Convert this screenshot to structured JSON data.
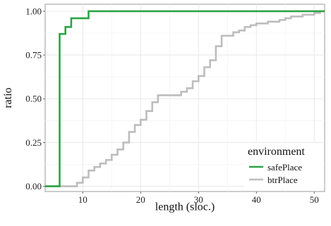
{
  "chart_data": {
    "type": "line",
    "step": true,
    "xlabel": "length (sloc.)",
    "ylabel": "ratio",
    "xlim": [
      3.5,
      51.8
    ],
    "ylim": [
      -0.03,
      1.04
    ],
    "x_ticks": [
      10,
      20,
      30,
      40,
      50
    ],
    "x_tick_labels": [
      "10",
      "20",
      "30",
      "40",
      "50"
    ],
    "y_ticks": [
      0,
      0.25,
      0.5,
      0.75,
      1.0
    ],
    "y_tick_labels": [
      "0.00",
      "0.25",
      "0.50",
      "0.75",
      "1.00"
    ],
    "grid": true,
    "legend": {
      "title": "environment",
      "placement": "bottom-right inside",
      "entries": [
        "safePlace",
        "btrPlace"
      ]
    },
    "series": [
      {
        "name": "safePlace",
        "color": "#2ca446",
        "x": [
          3.5,
          6,
          7,
          8,
          11,
          51.8
        ],
        "y": [
          0,
          0.87,
          0.91,
          0.96,
          1.0,
          1.0
        ]
      },
      {
        "name": "btrPlace",
        "color": "#bdbdbd",
        "x": [
          3.5,
          9,
          10,
          11,
          12,
          13,
          14,
          15,
          16,
          17,
          18,
          19,
          20,
          21,
          22,
          23,
          27,
          28,
          29,
          30,
          31,
          32,
          33,
          34,
          36,
          37,
          38,
          39,
          40,
          42,
          44,
          45,
          46,
          47,
          48,
          50,
          51,
          51.8
        ],
        "y": [
          0,
          0.02,
          0.05,
          0.09,
          0.11,
          0.13,
          0.15,
          0.18,
          0.21,
          0.25,
          0.31,
          0.35,
          0.38,
          0.43,
          0.48,
          0.52,
          0.54,
          0.56,
          0.6,
          0.63,
          0.68,
          0.72,
          0.8,
          0.86,
          0.88,
          0.89,
          0.91,
          0.92,
          0.93,
          0.94,
          0.95,
          0.96,
          0.97,
          0.97,
          0.98,
          0.99,
          1.0,
          1.0
        ]
      }
    ]
  }
}
